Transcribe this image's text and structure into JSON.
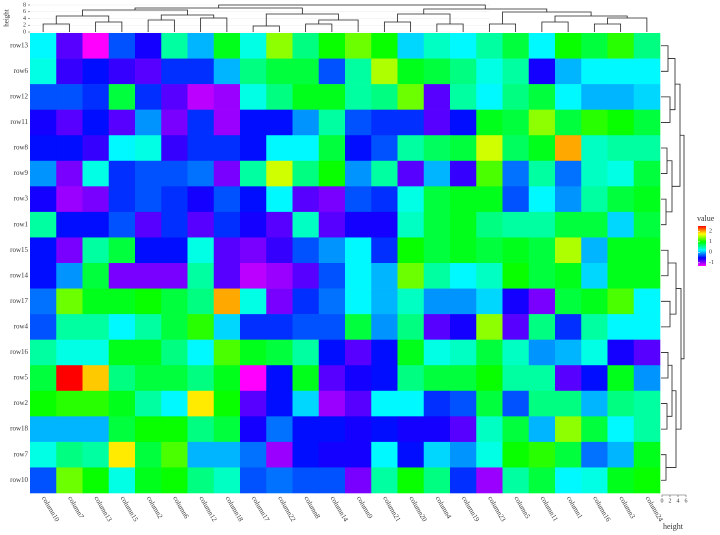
{
  "chart_data": {
    "type": "heatmap",
    "rows": [
      "row13",
      "row6",
      "row12",
      "row11",
      "row8",
      "row9",
      "row3",
      "row1",
      "row15",
      "row14",
      "row17",
      "row4",
      "row16",
      "row5",
      "row2",
      "row18",
      "row7",
      "row10"
    ],
    "columns": [
      "column10",
      "column7",
      "column13",
      "column15",
      "column2",
      "column6",
      "column12",
      "column18",
      "column17",
      "column22",
      "column8",
      "column14",
      "column9",
      "column21",
      "column20",
      "column4",
      "column19",
      "column23",
      "column5",
      "column11",
      "column1",
      "column16",
      "column3",
      "column24"
    ],
    "z": [
      [
        0.2,
        -0.8,
        -1.3,
        -0.3,
        -0.6,
        0.5,
        0,
        0.9,
        0.3,
        1.4,
        0.6,
        1.0,
        1.3,
        1.0,
        0.1,
        0.4,
        0.2,
        0.5,
        0.8,
        0.2,
        1.0,
        0.8,
        1.1,
        0.6
      ],
      [
        0.3,
        -0.7,
        -0.5,
        -0.7,
        -0.8,
        -0.4,
        -0.4,
        0,
        0.6,
        0.8,
        0.8,
        -0.3,
        0.5,
        1.5,
        0.9,
        0.8,
        0.6,
        0.3,
        0.5,
        -0.6,
        0,
        0.2,
        0.2,
        0.2
      ],
      [
        -0.3,
        -0.3,
        -0.4,
        0.8,
        -0.4,
        -0.8,
        -1.1,
        -1.0,
        0.3,
        0.6,
        0.9,
        0.9,
        0.5,
        0.6,
        1.3,
        -0.8,
        0.5,
        0.2,
        0.6,
        0.8,
        0.2,
        0,
        0,
        0.1
      ],
      [
        -0.6,
        -0.8,
        -0.5,
        -0.8,
        -0.1,
        -0.9,
        -0.4,
        -1.0,
        -0.5,
        -0.5,
        -0.1,
        0.5,
        -0.3,
        -0.4,
        -0.4,
        -0.8,
        -0.5,
        0.9,
        0.8,
        1.4,
        0.8,
        1.1,
        1.0,
        0.8
      ],
      [
        -0.5,
        -0.5,
        -0.7,
        0.2,
        0.3,
        -0.7,
        -0.4,
        -0.4,
        -0.5,
        0.2,
        0.2,
        0.8,
        -0.5,
        -0.3,
        0.5,
        0.7,
        0.8,
        1.6,
        0.7,
        0.9,
        2.0,
        0.4,
        0.5,
        0.5
      ],
      [
        -0.1,
        -0.9,
        0.3,
        -0.4,
        -0.3,
        -0.3,
        -0.2,
        -0.9,
        0.5,
        1.6,
        0.6,
        1.0,
        -0.1,
        0.5,
        -0.8,
        0,
        -0.7,
        1.2,
        -0.2,
        0.5,
        -0.2,
        0.4,
        0.3,
        0.8
      ],
      [
        -0.6,
        -1.0,
        -0.9,
        -0.4,
        -0.3,
        -0.4,
        -0.6,
        -0.3,
        -0.5,
        0.2,
        -0.8,
        -0.9,
        -0.3,
        -0.4,
        0.3,
        0.8,
        0.9,
        0.9,
        -0.3,
        0.2,
        -0.1,
        0.5,
        0.8,
        0.9
      ],
      [
        0.5,
        -0.5,
        -0.5,
        -0.3,
        -0.8,
        -0.4,
        -0.8,
        -0.4,
        -0.6,
        -0.8,
        0.4,
        -0.8,
        -0.6,
        -0.6,
        0.4,
        0.8,
        0.9,
        0.6,
        0.5,
        0.5,
        0.8,
        0.8,
        0.1,
        0.8
      ],
      [
        -0.5,
        -0.9,
        0.5,
        0.8,
        -0.5,
        -0.5,
        0.3,
        -0.8,
        -0.9,
        -0.7,
        -0.3,
        -0.1,
        0.2,
        -0.4,
        1.0,
        0.8,
        0.9,
        0.8,
        0.9,
        0.8,
        1.5,
        0,
        0.9,
        0.9
      ],
      [
        -0.5,
        -0.1,
        0.8,
        -0.9,
        -0.9,
        -0.9,
        0.5,
        -0.8,
        -1.1,
        -1.0,
        -0.8,
        -0.3,
        0.2,
        0,
        1.3,
        0.5,
        0.2,
        0.4,
        1.0,
        0.8,
        0.9,
        0.1,
        0.9,
        0.9
      ],
      [
        -0.2,
        1.3,
        0.9,
        0.9,
        1.0,
        0.8,
        0.6,
        2.0,
        0.3,
        -0.9,
        -0.4,
        -0.2,
        0.2,
        0,
        0.4,
        -0.1,
        -0.1,
        0.1,
        -0.6,
        -0.9,
        0.8,
        0.9,
        1.2,
        0.2
      ],
      [
        -0.3,
        0.5,
        0.5,
        0.2,
        0.5,
        0.8,
        1.1,
        0.1,
        -0.4,
        -0.4,
        -0.3,
        -0.3,
        0.8,
        -0.1,
        0.6,
        -0.8,
        -0.6,
        1.4,
        -0.8,
        0.6,
        -0.4,
        0.5,
        0.2,
        0.2
      ],
      [
        0.5,
        0.3,
        0.3,
        0.9,
        0.9,
        0.6,
        0.2,
        1.2,
        0.9,
        0.8,
        0.5,
        -0.5,
        -0.8,
        -0.5,
        0.9,
        0.3,
        0.4,
        0.8,
        0.4,
        -0.1,
        0,
        0.3,
        -0.6,
        -0.8
      ],
      [
        0.8,
        2.5,
        1.9,
        0.6,
        0.8,
        0.8,
        0.6,
        0.9,
        -1.3,
        -0.5,
        0.9,
        -0.8,
        -0.6,
        -0.5,
        0.6,
        0.8,
        0.8,
        1.0,
        0.5,
        0.5,
        -0.8,
        -0.5,
        0.9,
        -0.1
      ],
      [
        1.0,
        1.1,
        1.1,
        0.9,
        0.5,
        0.2,
        1.8,
        1.0,
        -0.8,
        -0.5,
        0.1,
        -1.0,
        -0.8,
        0.2,
        0.2,
        -0.4,
        -0.3,
        0.8,
        -0.3,
        0.6,
        0.6,
        0,
        0.6,
        0.5
      ],
      [
        0,
        0,
        0,
        0.8,
        1.0,
        1.0,
        0.6,
        0.8,
        -0.6,
        -0.2,
        -0.5,
        -0.5,
        -0.6,
        -0.5,
        -0.6,
        -0.6,
        -0.8,
        0.4,
        0.8,
        0,
        1.4,
        0.8,
        0.2,
        0.5
      ],
      [
        0.3,
        0.6,
        0.5,
        1.8,
        0.8,
        1.2,
        0,
        0,
        -0.2,
        -1.0,
        -0.5,
        -0.6,
        -0.6,
        0.2,
        -0.5,
        0.1,
        -0.1,
        0.3,
        1.0,
        1.1,
        0.8,
        -0.2,
        0,
        0.9
      ],
      [
        -0.3,
        1.3,
        1.0,
        0.3,
        0.9,
        1.0,
        0.6,
        0.4,
        -0.3,
        -0.2,
        -0.3,
        -0.3,
        -0.9,
        0.5,
        1.0,
        0.6,
        -0.4,
        -1.0,
        0.5,
        0.8,
        0.2,
        0.3,
        0.9,
        1.0
      ]
    ],
    "zlim": [
      -1.3,
      2.5
    ],
    "colorscale": [
      "#ff0000",
      "#ffff00",
      "#00ff00",
      "#00ffff",
      "#0000ff",
      "#ff00ff"
    ],
    "legend_title": "value",
    "legend_ticks": [
      2,
      1,
      0,
      -1
    ],
    "column_dendrogram": {
      "axis_label": "height",
      "lim": [
        0,
        8
      ],
      "ticks": [
        0,
        2,
        4,
        6,
        8
      ]
    },
    "row_dendrogram": {
      "axis_label": "height",
      "lim": [
        0,
        6
      ],
      "ticks": [
        0,
        2,
        4,
        6
      ]
    }
  }
}
